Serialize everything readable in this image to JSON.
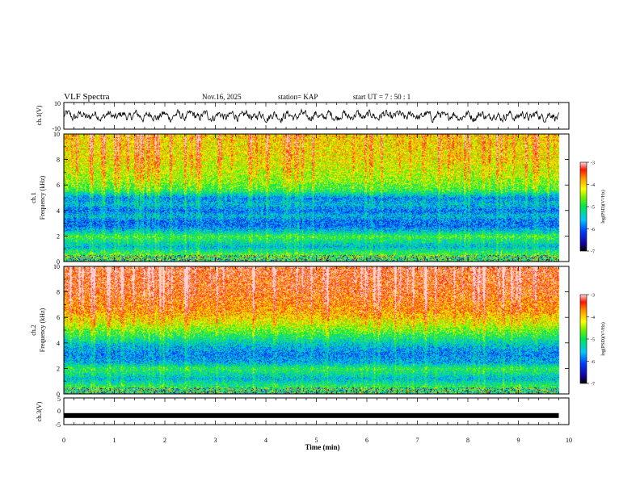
{
  "header": {
    "title": "VLF Spectra",
    "date": "Nov.16, 2025",
    "station": "station= KAP",
    "start": "start  UT  =   7 : 50 : 1"
  },
  "chart_data": [
    {
      "type": "line",
      "name": "ch1-waveform",
      "ylabel": "ch.1(V)",
      "ylim": [
        -10,
        10
      ],
      "y_ticks": [
        "10",
        "-10"
      ],
      "xlim": [
        0,
        10
      ],
      "data_end": 9.8,
      "amplitude_range": [
        -5,
        5
      ]
    },
    {
      "type": "heatmap",
      "name": "ch1-spectrogram",
      "ylabel_lines": [
        "ch.1",
        "Frequency  (kHz)"
      ],
      "ylim": [
        0,
        10
      ],
      "y_ticks": [
        "0",
        "2",
        "4",
        "6",
        "8",
        "10"
      ],
      "xlim": [
        0,
        10
      ],
      "data_end": 9.8,
      "colorbar": {
        "label": "log(PSD)(V²/Hz)",
        "ticks": [
          "-3",
          "-4",
          "-5",
          "-6",
          "-7"
        ],
        "range": [
          -7,
          -3
        ]
      },
      "level_profile_khz": [
        [
          0,
          -5.3
        ],
        [
          0.5,
          -4.8
        ],
        [
          1.2,
          -5.6
        ],
        [
          2.0,
          -4.9
        ],
        [
          2.3,
          -5.4
        ],
        [
          2.8,
          -6.0
        ],
        [
          3.2,
          -6.0
        ],
        [
          3.6,
          -5.6
        ],
        [
          4.0,
          -6.0
        ],
        [
          4.5,
          -5.6
        ],
        [
          5.0,
          -5.9
        ],
        [
          5.6,
          -5.0
        ],
        [
          6.5,
          -4.6
        ],
        [
          8.0,
          -4.3
        ],
        [
          10.0,
          -4.2
        ]
      ]
    },
    {
      "type": "heatmap",
      "name": "ch2-spectrogram",
      "ylabel_lines": [
        "ch.2",
        "Frequency  (kHz)"
      ],
      "ylim": [
        0,
        10
      ],
      "y_ticks": [
        "0",
        "2",
        "4",
        "6",
        "8",
        "10"
      ],
      "xlim": [
        0,
        10
      ],
      "data_end": 9.8,
      "colorbar": {
        "label": "log(PSD)(V²/Hz)",
        "ticks": [
          "-3",
          "-4",
          "-5",
          "-6",
          "-7"
        ],
        "range": [
          -7,
          -3
        ]
      },
      "level_profile_khz": [
        [
          0,
          -5.2
        ],
        [
          0.6,
          -5.0
        ],
        [
          1.2,
          -5.6
        ],
        [
          2.0,
          -5.0
        ],
        [
          2.5,
          -5.7
        ],
        [
          3.2,
          -5.9
        ],
        [
          3.8,
          -5.6
        ],
        [
          4.5,
          -5.1
        ],
        [
          5.5,
          -4.4
        ],
        [
          6.5,
          -3.9
        ],
        [
          8.0,
          -3.6
        ],
        [
          10.0,
          -3.5
        ]
      ]
    },
    {
      "type": "line",
      "name": "ch3-waveform",
      "ylabel": "ch.3(V)",
      "ylim": [
        -5,
        5
      ],
      "y_ticks": [
        "5",
        "0",
        "-5"
      ],
      "xlim": [
        0,
        10
      ],
      "data_end": 9.8,
      "constant_level": -1.6
    }
  ],
  "x_axis": {
    "label": "Time  (min)",
    "ticks": [
      "0",
      "1",
      "2",
      "3",
      "4",
      "5",
      "6",
      "7",
      "8",
      "9",
      "10"
    ]
  }
}
